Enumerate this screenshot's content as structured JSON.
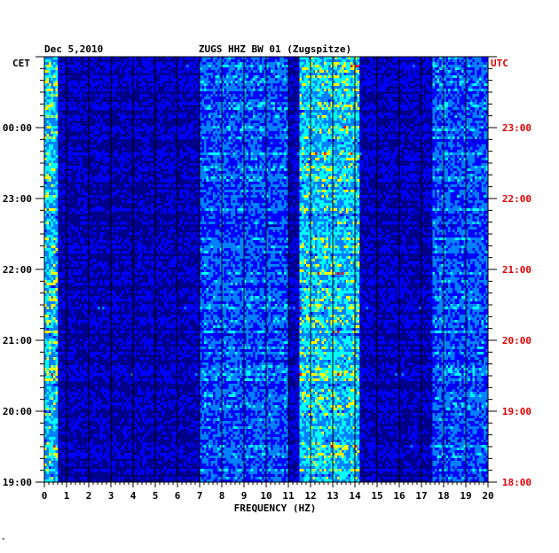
{
  "chart_data": {
    "type": "heatmap",
    "date_label": "Dec 5,2010",
    "station_title": "ZUGS HHZ BW 01 (Zugspitze)",
    "left_tz_label": "CET",
    "right_tz_label": "UTC",
    "xlabel": "FREQUENCY (HZ)",
    "xlim": [
      0,
      20
    ],
    "x_ticks": [
      0,
      1,
      2,
      3,
      4,
      5,
      6,
      7,
      8,
      9,
      10,
      11,
      12,
      13,
      14,
      15,
      16,
      17,
      18,
      19,
      20
    ],
    "x_tick_labels": [
      "0",
      "1",
      "2",
      "3",
      "4",
      "5",
      "6",
      "7",
      "8",
      "9",
      "10",
      "11",
      "12",
      "13",
      "14",
      "15",
      "16",
      "17",
      "18",
      "19",
      "20"
    ],
    "left_y_tick_labels": [
      "19:00",
      "20:00",
      "21:00",
      "22:00",
      "23:00",
      "00:00"
    ],
    "right_y_tick_labels": [
      "18:00",
      "19:00",
      "20:00",
      "21:00",
      "22:00",
      "23:00"
    ],
    "y_hours_span": 6,
    "grid": true,
    "colormap": [
      "#00008b",
      "#0000ff",
      "#0080ff",
      "#00ffff",
      "#ffff00",
      "#ff0000"
    ],
    "colors": {
      "right_axis_text": "#e00000",
      "left_axis_text": "#000000",
      "grid": "#000000"
    },
    "energy_bands": [
      {
        "f_min": 0.0,
        "f_max": 0.6,
        "level": "high"
      },
      {
        "f_min": 7.0,
        "f_max": 11.0,
        "level": "medium"
      },
      {
        "f_min": 11.5,
        "f_max": 14.2,
        "level": "high"
      },
      {
        "f_min": 17.5,
        "f_max": 20.0,
        "level": "medium"
      }
    ]
  },
  "footer": {
    "mark": "*"
  }
}
